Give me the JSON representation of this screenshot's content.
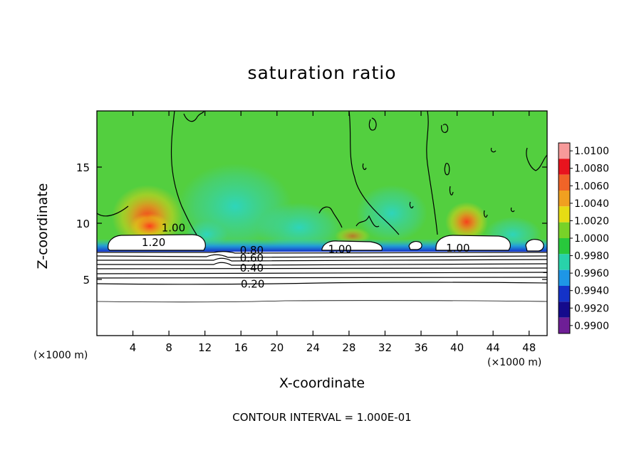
{
  "chart_data": {
    "type": "heatmap",
    "title": "saturation ratio",
    "xlabel": "X-coordinate",
    "ylabel": "Z-coordinate",
    "x_unit_label": "(×1000 m)",
    "z_unit_label": "(×1000 m)",
    "xlim": [
      0,
      50
    ],
    "ylim": [
      0,
      20
    ],
    "x_ticks": [
      4,
      8,
      12,
      16,
      20,
      24,
      28,
      32,
      36,
      40,
      44,
      48
    ],
    "y_ticks": [
      5,
      10,
      15
    ],
    "colorbar": {
      "levels": [
        "1.0100",
        "1.0080",
        "1.0060",
        "1.0040",
        "1.0020",
        "1.0000",
        "0.9980",
        "0.9960",
        "0.9940",
        "0.9920",
        "0.9900"
      ],
      "colors": [
        "#f79a9a",
        "#e8141e",
        "#f06428",
        "#f0a020",
        "#e6dc14",
        "#78d228",
        "#28c83c",
        "#28d2aa",
        "#1e96e6",
        "#1432c8",
        "#140a8c",
        "#6e1e96"
      ]
    },
    "contour_labels": [
      {
        "text": "1.00",
        "x": 8.5,
        "z": 9.6
      },
      {
        "text": "1.20",
        "x": 6.3,
        "z": 8.3
      },
      {
        "text": "0.80",
        "x": 17.2,
        "z": 7.6
      },
      {
        "text": "0.60",
        "x": 17.2,
        "z": 6.9
      },
      {
        "text": "0.40",
        "x": 17.2,
        "z": 6.0
      },
      {
        "text": "0.20",
        "x": 17.3,
        "z": 4.6
      },
      {
        "text": "1.00",
        "x": 27.0,
        "z": 7.7
      },
      {
        "text": "1.00",
        "x": 40.1,
        "z": 7.8
      }
    ],
    "contour_interval": "CONTOUR INTERVAL = 1.000E-01"
  }
}
